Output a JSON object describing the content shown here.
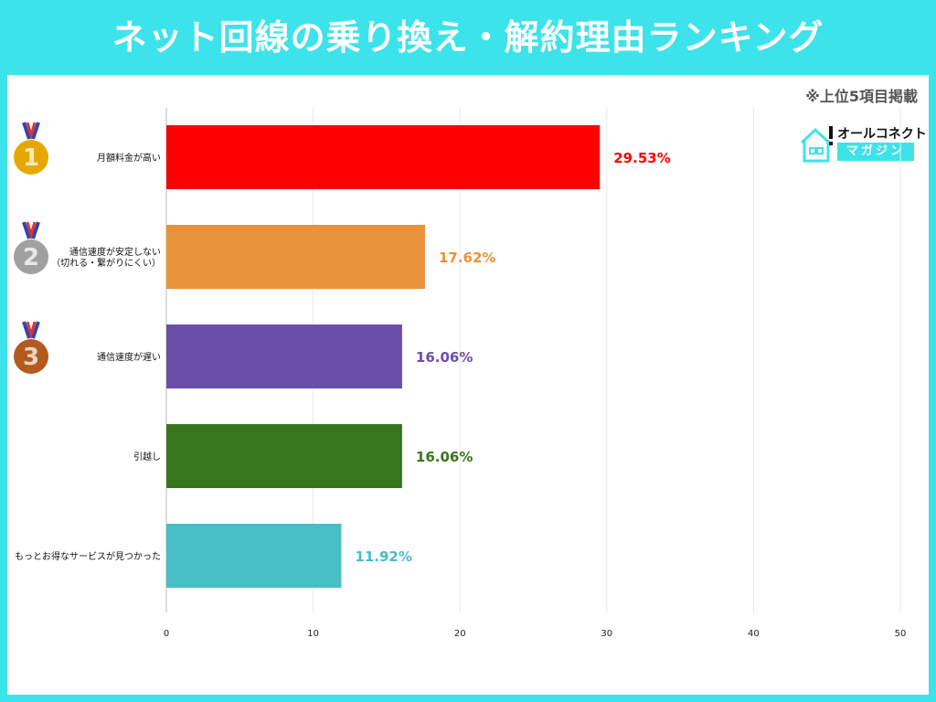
{
  "title": "ネット回線の乗り換え・解約理由ランキング",
  "note": "※上位5項目掲載",
  "logo": {
    "line1": "オールコネクト",
    "line2": "マガジン"
  },
  "chart_data": {
    "type": "bar",
    "orientation": "horizontal",
    "categories": [
      "月額料金が高い",
      "通信速度が安定しない\n（切れる・繋がりにくい）",
      "通信速度が遅い",
      "引越し",
      "もっとお得なサービスが見つかった"
    ],
    "values": [
      29.53,
      17.62,
      16.06,
      16.06,
      11.92
    ],
    "data_labels": [
      "29.53%",
      "17.62%",
      "16.06%",
      "16.06%",
      "11.92%"
    ],
    "colors": [
      "#ff0000",
      "#e8923a",
      "#6a4fa9",
      "#38761d",
      "#47bdc6"
    ],
    "rank_medals": [
      "1",
      "2",
      "3"
    ],
    "medal_colors": [
      "#e6a800",
      "#a0a0a0",
      "#b35a1f"
    ],
    "xlim": [
      0,
      50
    ],
    "xticks": [
      0,
      10,
      20,
      30,
      40,
      50
    ],
    "grid": true,
    "xlabel": "",
    "ylabel": ""
  }
}
